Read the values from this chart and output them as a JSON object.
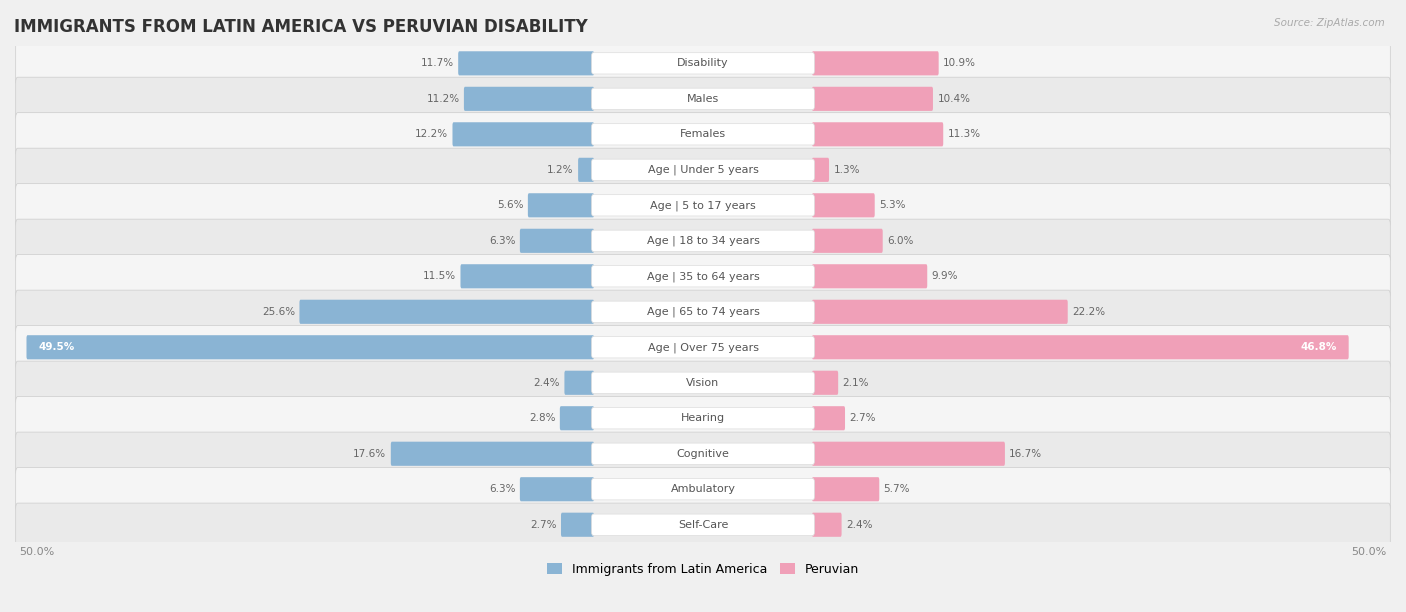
{
  "title": "IMMIGRANTS FROM LATIN AMERICA VS PERUVIAN DISABILITY",
  "source": "Source: ZipAtlas.com",
  "categories": [
    "Disability",
    "Males",
    "Females",
    "Age | Under 5 years",
    "Age | 5 to 17 years",
    "Age | 18 to 34 years",
    "Age | 35 to 64 years",
    "Age | 65 to 74 years",
    "Age | Over 75 years",
    "Vision",
    "Hearing",
    "Cognitive",
    "Ambulatory",
    "Self-Care"
  ],
  "left_values": [
    11.7,
    11.2,
    12.2,
    1.2,
    5.6,
    6.3,
    11.5,
    25.6,
    49.5,
    2.4,
    2.8,
    17.6,
    6.3,
    2.7
  ],
  "right_values": [
    10.9,
    10.4,
    11.3,
    1.3,
    5.3,
    6.0,
    9.9,
    22.2,
    46.8,
    2.1,
    2.7,
    16.7,
    5.7,
    2.4
  ],
  "left_color": "#8ab4d4",
  "right_color": "#f0a0b8",
  "left_label": "Immigrants from Latin America",
  "right_label": "Peruvian",
  "max_val": 50.0,
  "row_colors": [
    "#f5f5f5",
    "#eaeaea"
  ],
  "title_fontsize": 12,
  "label_fontsize": 8,
  "value_fontsize": 7.5,
  "background_color": "#f0f0f0"
}
